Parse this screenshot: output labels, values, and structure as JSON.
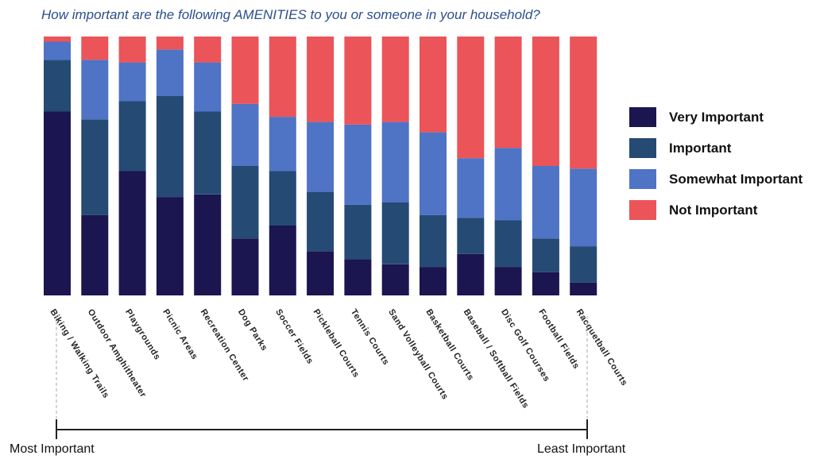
{
  "title": "How important are the following AMENITIES to you or someone in your household?",
  "colors": {
    "very_important": "#1b1550",
    "important": "#254a74",
    "somewhat_important": "#4f73c5",
    "not_important": "#eb5459"
  },
  "legend": [
    {
      "label": "Very Important",
      "color_key": "very_important"
    },
    {
      "label": "Important",
      "color_key": "important"
    },
    {
      "label": "Somewhat Important",
      "color_key": "somewhat_important"
    },
    {
      "label": "Not Important",
      "color_key": "not_important"
    }
  ],
  "scale": {
    "left_label": "Most Important",
    "right_label": "Least Important"
  },
  "chart_data": {
    "type": "bar",
    "stacked": true,
    "percent": true,
    "ylim": [
      0,
      100
    ],
    "grid": false,
    "legend_position": "right",
    "categories": [
      "Biking / Walking Trails",
      "Outdoor Amphitheater",
      "Playgrounds",
      "Picnic Areas",
      "Recreation Center",
      "Dog Parks",
      "Soccer Fields",
      "Pickleball Courts",
      "Tennis Courts",
      "Sand Volleyball Courts",
      "Basketball Courts",
      "Baseball / Softball Fields",
      "Disc Golf Courses",
      "Football Fields",
      "Racquetball Courts"
    ],
    "series": [
      {
        "name": "Very Important",
        "values": [
          71,
          31,
          48,
          38,
          39,
          22,
          27,
          17,
          14,
          12,
          11,
          16,
          11,
          9,
          5
        ]
      },
      {
        "name": "Important",
        "values": [
          20,
          37,
          27,
          39,
          32,
          28,
          21,
          23,
          21,
          24,
          20,
          14,
          18,
          13,
          14
        ]
      },
      {
        "name": "Somewhat Important",
        "values": [
          7,
          23,
          15,
          18,
          19,
          24,
          21,
          27,
          31,
          31,
          32,
          23,
          28,
          28,
          30
        ]
      },
      {
        "name": "Not Important",
        "values": [
          2,
          9,
          10,
          5,
          10,
          26,
          31,
          33,
          34,
          33,
          37,
          47,
          43,
          50,
          51
        ]
      }
    ]
  }
}
